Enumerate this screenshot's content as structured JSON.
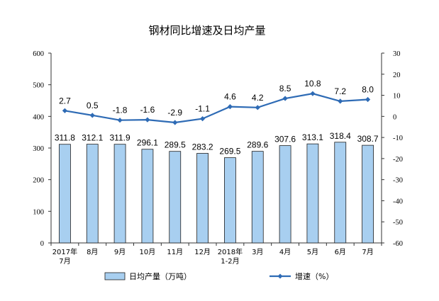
{
  "chart_data": {
    "type": "bar+line",
    "title": "钢材同比增速及日均产量",
    "categories": [
      [
        "2017年",
        "7月"
      ],
      [
        "8月"
      ],
      [
        "9月"
      ],
      [
        "10月"
      ],
      [
        "11月"
      ],
      [
        "12月"
      ],
      [
        "2018年",
        "1-2月"
      ],
      [
        "3月"
      ],
      [
        "4月"
      ],
      [
        "5月"
      ],
      [
        "6月"
      ],
      [
        "7月"
      ]
    ],
    "series": [
      {
        "name": "日均产量（万吨）",
        "type": "bar",
        "axis": "left",
        "values": [
          311.8,
          312.1,
          311.9,
          296.1,
          289.5,
          283.2,
          269.5,
          289.6,
          307.6,
          313.1,
          318.4,
          308.7
        ],
        "color": "#a8cff0",
        "border_color": "#1f1f1f"
      },
      {
        "name": "增速（%）",
        "type": "line",
        "axis": "right",
        "values": [
          2.7,
          0.5,
          -1.8,
          -1.6,
          -2.9,
          -1.1,
          4.6,
          4.2,
          8.5,
          10.8,
          7.2,
          8.0
        ],
        "color": "#2e6bb5",
        "marker": "diamond"
      }
    ],
    "left_axis": {
      "ylim": [
        0,
        600
      ],
      "ticks": [
        0,
        100,
        200,
        300,
        400,
        500,
        600
      ]
    },
    "right_axis": {
      "ylim": [
        -60,
        30
      ],
      "ticks": [
        -60,
        -50,
        -40,
        -30,
        -20,
        -10,
        0,
        10,
        20,
        30
      ]
    },
    "legend": {
      "placement": "bottom"
    },
    "grid": false
  }
}
